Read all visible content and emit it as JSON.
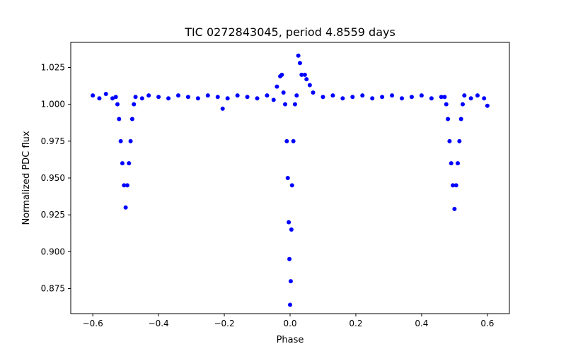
{
  "chart_data": {
    "type": "scatter",
    "title": "TIC 0272843045, period 4.8559 days",
    "xlabel": "Phase",
    "ylabel": "Normalized PDC flux",
    "xlim": [
      -0.667,
      0.667
    ],
    "ylim": [
      0.858,
      1.042
    ],
    "xticks": [
      -0.6,
      -0.4,
      -0.2,
      0.0,
      0.2,
      0.4,
      0.6
    ],
    "xtick_labels": [
      "−0.6",
      "−0.4",
      "−0.2",
      "0.0",
      "0.2",
      "0.4",
      "0.6"
    ],
    "yticks": [
      0.875,
      0.9,
      0.925,
      0.95,
      0.975,
      1.0,
      1.025
    ],
    "ytick_labels": [
      "0.875",
      "0.900",
      "0.925",
      "0.950",
      "0.975",
      "1.000",
      "1.025"
    ],
    "grid": false,
    "marker_color": "#0000ff",
    "series": [
      {
        "name": "flux",
        "points": [
          [
            -0.6,
            1.006
          ],
          [
            -0.58,
            1.004
          ],
          [
            -0.56,
            1.007
          ],
          [
            -0.54,
            1.004
          ],
          [
            -0.53,
            1.005
          ],
          [
            -0.525,
            1.0
          ],
          [
            -0.52,
            0.99
          ],
          [
            -0.515,
            0.975
          ],
          [
            -0.51,
            0.96
          ],
          [
            -0.505,
            0.945
          ],
          [
            -0.5,
            0.93
          ],
          [
            -0.495,
            0.945
          ],
          [
            -0.49,
            0.96
          ],
          [
            -0.485,
            0.975
          ],
          [
            -0.48,
            0.99
          ],
          [
            -0.475,
            1.0
          ],
          [
            -0.47,
            1.005
          ],
          [
            -0.45,
            1.004
          ],
          [
            -0.43,
            1.006
          ],
          [
            -0.4,
            1.005
          ],
          [
            -0.37,
            1.004
          ],
          [
            -0.34,
            1.006
          ],
          [
            -0.31,
            1.005
          ],
          [
            -0.28,
            1.004
          ],
          [
            -0.25,
            1.006
          ],
          [
            -0.22,
            1.005
          ],
          [
            -0.205,
            0.997
          ],
          [
            -0.19,
            1.004
          ],
          [
            -0.16,
            1.006
          ],
          [
            -0.13,
            1.005
          ],
          [
            -0.1,
            1.004
          ],
          [
            -0.07,
            1.006
          ],
          [
            -0.05,
            1.003
          ],
          [
            -0.04,
            1.012
          ],
          [
            -0.03,
            1.019
          ],
          [
            -0.025,
            1.02
          ],
          [
            -0.02,
            1.008
          ],
          [
            -0.015,
            1.0
          ],
          [
            -0.01,
            0.975
          ],
          [
            -0.007,
            0.95
          ],
          [
            -0.004,
            0.92
          ],
          [
            -0.002,
            0.895
          ],
          [
            0.0,
            0.864
          ],
          [
            0.002,
            0.88
          ],
          [
            0.004,
            0.915
          ],
          [
            0.006,
            0.945
          ],
          [
            0.01,
            0.975
          ],
          [
            0.015,
            1.0
          ],
          [
            0.02,
            1.006
          ],
          [
            0.025,
            1.033
          ],
          [
            0.03,
            1.028
          ],
          [
            0.035,
            1.02
          ],
          [
            0.045,
            1.02
          ],
          [
            0.05,
            1.017
          ],
          [
            0.06,
            1.013
          ],
          [
            0.07,
            1.008
          ],
          [
            0.1,
            1.005
          ],
          [
            0.13,
            1.006
          ],
          [
            0.16,
            1.004
          ],
          [
            0.19,
            1.005
          ],
          [
            0.22,
            1.006
          ],
          [
            0.25,
            1.004
          ],
          [
            0.28,
            1.005
          ],
          [
            0.31,
            1.006
          ],
          [
            0.34,
            1.004
          ],
          [
            0.37,
            1.005
          ],
          [
            0.4,
            1.006
          ],
          [
            0.43,
            1.004
          ],
          [
            0.46,
            1.005
          ],
          [
            0.47,
            1.005
          ],
          [
            0.475,
            1.0
          ],
          [
            0.48,
            0.99
          ],
          [
            0.485,
            0.975
          ],
          [
            0.49,
            0.96
          ],
          [
            0.495,
            0.945
          ],
          [
            0.5,
            0.929
          ],
          [
            0.505,
            0.945
          ],
          [
            0.51,
            0.96
          ],
          [
            0.515,
            0.975
          ],
          [
            0.52,
            0.99
          ],
          [
            0.525,
            1.0
          ],
          [
            0.53,
            1.006
          ],
          [
            0.55,
            1.004
          ],
          [
            0.57,
            1.006
          ],
          [
            0.59,
            1.004
          ],
          [
            0.6,
            0.999
          ]
        ]
      }
    ]
  }
}
